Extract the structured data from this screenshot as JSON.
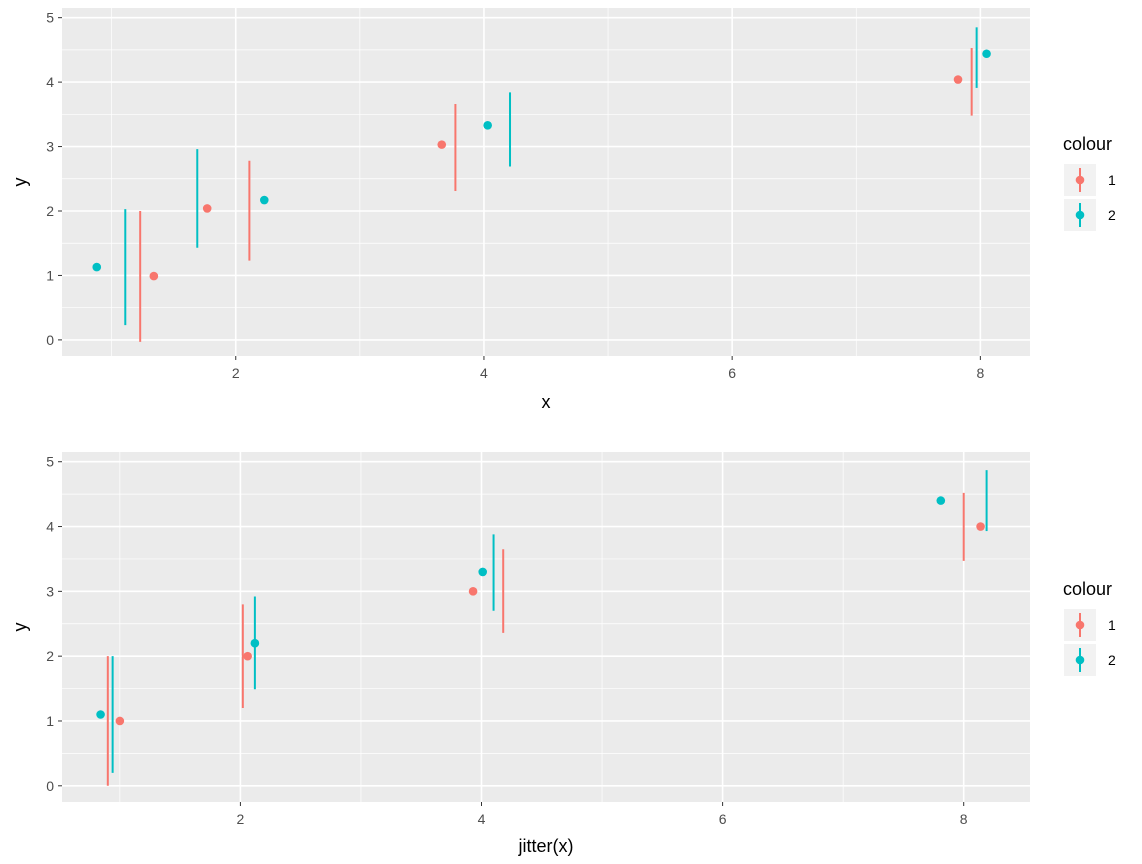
{
  "colors": {
    "1": "#F8766D",
    "2": "#00BFC4"
  },
  "chart_data": [
    {
      "type": "scatter",
      "xlabel": "x",
      "ylabel": "y",
      "xlim": [
        0.6,
        8.4
      ],
      "ylim": [
        -0.25,
        5.15
      ],
      "x_ticks": [
        2,
        4,
        6,
        8
      ],
      "y_ticks": [
        0,
        1,
        2,
        3,
        4,
        5
      ],
      "grid": true,
      "legend": {
        "title": "colour",
        "position": "right",
        "entries": [
          "1",
          "2"
        ]
      },
      "points": [
        {
          "series": "2",
          "x": 0.88,
          "y": 1.13
        },
        {
          "series": "1",
          "x": 1.34,
          "y": 0.99
        },
        {
          "series": "1",
          "x": 1.77,
          "y": 2.04
        },
        {
          "series": "2",
          "x": 2.23,
          "y": 2.17
        },
        {
          "series": "1",
          "x": 3.66,
          "y": 3.03
        },
        {
          "series": "2",
          "x": 4.03,
          "y": 3.33
        },
        {
          "series": "1",
          "x": 7.82,
          "y": 4.04
        },
        {
          "series": "2",
          "x": 8.05,
          "y": 4.44
        }
      ],
      "errorbars": [
        {
          "series": "2",
          "x": 1.11,
          "ymin": 0.23,
          "ymax": 2.03
        },
        {
          "series": "1",
          "x": 1.23,
          "ymin": -0.03,
          "ymax": 2.0
        },
        {
          "series": "2",
          "x": 1.69,
          "ymin": 1.43,
          "ymax": 2.96
        },
        {
          "series": "1",
          "x": 2.11,
          "ymin": 1.23,
          "ymax": 2.78
        },
        {
          "series": "1",
          "x": 3.77,
          "ymin": 2.31,
          "ymax": 3.66
        },
        {
          "series": "2",
          "x": 4.21,
          "ymin": 2.69,
          "ymax": 3.84
        },
        {
          "series": "1",
          "x": 7.93,
          "ymin": 3.48,
          "ymax": 4.53
        },
        {
          "series": "2",
          "x": 7.97,
          "ymin": 3.91,
          "ymax": 4.85
        }
      ]
    },
    {
      "type": "scatter",
      "xlabel": "jitter(x)",
      "ylabel": "y",
      "xlim": [
        0.52,
        8.55
      ],
      "ylim": [
        -0.25,
        5.15
      ],
      "x_ticks": [
        2,
        4,
        6,
        8
      ],
      "y_ticks": [
        0,
        1,
        2,
        3,
        4,
        5
      ],
      "grid": true,
      "legend": {
        "title": "colour",
        "position": "right",
        "entries": [
          "1",
          "2"
        ]
      },
      "points": [
        {
          "series": "2",
          "x": 0.84,
          "y": 1.1
        },
        {
          "series": "1",
          "x": 1.0,
          "y": 1.0
        },
        {
          "series": "1",
          "x": 2.06,
          "y": 2.0
        },
        {
          "series": "2",
          "x": 2.12,
          "y": 2.2
        },
        {
          "series": "1",
          "x": 3.93,
          "y": 3.0
        },
        {
          "series": "2",
          "x": 4.01,
          "y": 3.3
        },
        {
          "series": "2",
          "x": 7.81,
          "y": 4.4
        },
        {
          "series": "1",
          "x": 8.14,
          "y": 4.0
        }
      ],
      "errorbars": [
        {
          "series": "1",
          "x": 0.9,
          "ymin": 0.0,
          "ymax": 2.0
        },
        {
          "series": "2",
          "x": 0.94,
          "ymin": 0.2,
          "ymax": 2.0
        },
        {
          "series": "1",
          "x": 2.02,
          "ymin": 1.2,
          "ymax": 2.8
        },
        {
          "series": "2",
          "x": 2.12,
          "ymin": 1.49,
          "ymax": 2.92
        },
        {
          "series": "2",
          "x": 4.1,
          "ymin": 2.7,
          "ymax": 3.88
        },
        {
          "series": "1",
          "x": 4.18,
          "ymin": 2.36,
          "ymax": 3.65
        },
        {
          "series": "1",
          "x": 8.0,
          "ymin": 3.47,
          "ymax": 4.52
        },
        {
          "series": "2",
          "x": 8.19,
          "ymin": 3.93,
          "ymax": 4.87
        }
      ]
    }
  ]
}
